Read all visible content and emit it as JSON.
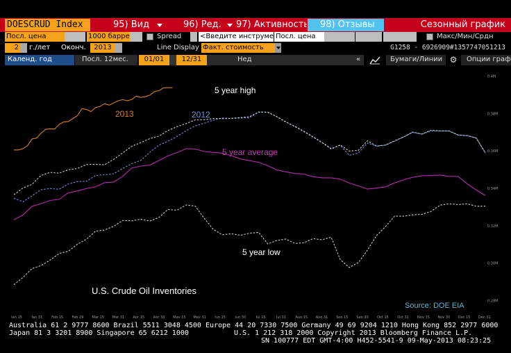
{
  "toolbar": {
    "ticker": "DOESCRUD Index",
    "btn_view": "95) Вид",
    "btn_edit": "96) Ред.",
    "btn_activity": "97) Активность",
    "btn_reviews": "98) Отзывы",
    "title": "Сезонный график"
  },
  "row2": {
    "field1": "Посл. цена",
    "field2": "1000 барре",
    "check1_label": "Spread",
    "input_placeholder": "<Введите инструме",
    "field3": "Посл. цена",
    "check2_label": "Макс/Мин/Срдн"
  },
  "row3": {
    "years": "2",
    "years_unit": "г./лет",
    "end_label": "Оконч.",
    "end_year": "2013",
    "line_display_label": "Line Display",
    "line_display_value": "Факт. стоимость",
    "id_text": "G1258 - 6926909#1357747051213"
  },
  "row4": {
    "tab_calendar": "Календ. год",
    "tab_last12": "Посл. 12мес.",
    "date_from": "01/01",
    "date_to": "12/31",
    "period": "Нед",
    "collapse": "«",
    "bonds_lines": "Бумаги/Линии",
    "chart_options": "Опции граф"
  },
  "chart_data": {
    "type": "line",
    "x_ticks": [
      "Jan 15",
      "Jan 31",
      "Feb 15",
      "Feb 29",
      "Mar 15",
      "Mar 31",
      "Apr 15",
      "Apr 30",
      "May 15",
      "May 31",
      "Jun 15",
      "Jun 30",
      "Jul 15",
      "Jul 31",
      "Aug 15",
      "Aug 31",
      "Sep 15",
      "Sep 30",
      "Oct 15",
      "Oct 31",
      "Nov 15",
      "Nov 30",
      "Dec 15",
      "Dec 31"
    ],
    "y_ticks": [
      "0.28M",
      "0.30M",
      "0.32M",
      "0.34M",
      "0.36M",
      "0.38M",
      "0.4M"
    ],
    "ylim": [
      0.275,
      0.405
    ],
    "annotations": {
      "s2013": "2013",
      "s2012": "2012",
      "high": "5 year high",
      "avg": "5 year average",
      "low": "5 year low",
      "chart_title": "U.S. Crude Oil Inventories",
      "source": "Source: DOE EIA"
    },
    "series": [
      {
        "name": "2013",
        "color": "#d9801f",
        "dash": false,
        "x": [
          0,
          0.5,
          1,
          1.5,
          2,
          2.5,
          3,
          3.5,
          4,
          4.5,
          5,
          5.5,
          6,
          6.5,
          7,
          7.5,
          8,
          8.5,
          9,
          9.5,
          10,
          10.5,
          11,
          11.5,
          12,
          12.5,
          13,
          13.5,
          14,
          14.5,
          15,
          15.5,
          16,
          16.5,
          17,
          17.5
        ],
        "y": [
          0.3605,
          0.3605,
          0.3612,
          0.3628,
          0.3664,
          0.3668,
          0.3695,
          0.3715,
          0.3718,
          0.3717,
          0.3742,
          0.3755,
          0.3757,
          0.3772,
          0.3788,
          0.3825,
          0.3822,
          0.381,
          0.3832,
          0.3838,
          0.3852,
          0.3845,
          0.3856,
          0.3868,
          0.3874,
          0.3868,
          0.3875,
          0.3893,
          0.3886,
          0.389,
          0.3898,
          0.3917,
          0.3922,
          0.3937,
          0.3938,
          0.3938
        ]
      },
      {
        "name": "2012",
        "color": "#6f93d6",
        "dash": true,
        "x": [
          0,
          1,
          2,
          3,
          4,
          5,
          6,
          7,
          8,
          9,
          10,
          11,
          12,
          13,
          14,
          15,
          16,
          17,
          18,
          19,
          20,
          21,
          22,
          23,
          24,
          25,
          26,
          27,
          28,
          29,
          30,
          31,
          32,
          33,
          34,
          35,
          36,
          37,
          38,
          39,
          40,
          41,
          42,
          43,
          44,
          45,
          46,
          47,
          48,
          49,
          50,
          51,
          52
        ],
        "y": [
          0.3347,
          0.3328,
          0.336,
          0.3393,
          0.3399,
          0.3395,
          0.3423,
          0.3436,
          0.3437,
          0.3469,
          0.3472,
          0.3478,
          0.3506,
          0.3532,
          0.3549,
          0.3593,
          0.3631,
          0.3652,
          0.3677,
          0.3708,
          0.3734,
          0.3748,
          0.3764,
          0.3776,
          0.3773,
          0.3776,
          0.3777,
          0.3808,
          0.3808,
          0.3783,
          0.3754,
          0.3732,
          0.3705,
          0.3676,
          0.3645,
          0.3614,
          0.363,
          0.3576,
          0.3589,
          0.3642,
          0.3626,
          0.3631,
          0.3652,
          0.3674,
          0.3699,
          0.3689,
          0.3706,
          0.3706,
          0.3706,
          0.3685,
          0.3681,
          0.3669,
          0.3589
        ]
      },
      {
        "name": "5 year high",
        "color": "#cfcfcf",
        "dash": true,
        "x": [
          0,
          1,
          2,
          3,
          4,
          5,
          6,
          7,
          8,
          9,
          10,
          11,
          12,
          13,
          14,
          15,
          16,
          17,
          18,
          19,
          20,
          21,
          22,
          23,
          24,
          25,
          26,
          27,
          28,
          29,
          30,
          31,
          32,
          33,
          34,
          35,
          36,
          37,
          38,
          39,
          40,
          41,
          42,
          43,
          44,
          45,
          46,
          47,
          48,
          49,
          50,
          51,
          52
        ],
        "y": [
          0.3366,
          0.3402,
          0.3421,
          0.3469,
          0.3485,
          0.3481,
          0.3499,
          0.3506,
          0.3527,
          0.3528,
          0.3526,
          0.3554,
          0.3589,
          0.3625,
          0.3644,
          0.3666,
          0.3679,
          0.3709,
          0.373,
          0.3746,
          0.3766,
          0.3767,
          0.3773,
          0.3772,
          0.3774,
          0.3778,
          0.3783,
          0.3808,
          0.3806,
          0.3783,
          0.3755,
          0.373,
          0.3703,
          0.3674,
          0.3644,
          0.361,
          0.3632,
          0.3599,
          0.3603,
          0.3654,
          0.3626,
          0.3631,
          0.3654,
          0.3675,
          0.3701,
          0.369,
          0.371,
          0.3707,
          0.3707,
          0.3685,
          0.3682,
          0.3669,
          0.359
        ]
      },
      {
        "name": "5 year average",
        "color": "#b52bb0",
        "dash": false,
        "x": [
          0,
          1,
          2,
          3,
          4,
          5,
          6,
          7,
          8,
          9,
          10,
          11,
          12,
          13,
          14,
          15,
          16,
          17,
          18,
          19,
          20,
          21,
          22,
          23,
          24,
          25,
          26,
          27,
          28,
          29,
          30,
          31,
          32,
          33,
          34,
          35,
          36,
          37,
          38,
          39,
          40,
          41,
          42,
          43,
          44,
          45,
          46,
          47,
          48,
          49,
          50,
          51,
          52
        ],
        "y": [
          0.3232,
          0.3257,
          0.3304,
          0.3318,
          0.3335,
          0.3341,
          0.3376,
          0.3386,
          0.3399,
          0.3408,
          0.343,
          0.3433,
          0.3464,
          0.3509,
          0.3519,
          0.3524,
          0.3549,
          0.3574,
          0.3591,
          0.3612,
          0.361,
          0.3597,
          0.3592,
          0.3588,
          0.3575,
          0.3557,
          0.3548,
          0.3539,
          0.3521,
          0.3498,
          0.3488,
          0.3479,
          0.3476,
          0.3462,
          0.3456,
          0.3456,
          0.3449,
          0.3428,
          0.3413,
          0.3396,
          0.3401,
          0.3408,
          0.3429,
          0.3446,
          0.3459,
          0.3467,
          0.3469,
          0.3471,
          0.3464,
          0.3463,
          0.3424,
          0.3391,
          0.3361
        ]
      },
      {
        "name": "5 year low",
        "color": "#cfcfcf",
        "dash": true,
        "x": [
          0,
          1,
          2,
          3,
          4,
          5,
          6,
          7,
          8,
          9,
          10,
          11,
          12,
          13,
          14,
          15,
          16,
          17,
          18,
          19,
          20,
          21,
          22,
          23,
          24,
          25,
          26,
          27,
          28,
          29,
          30,
          31,
          32,
          33,
          34,
          35,
          36,
          37,
          38,
          39,
          40,
          41,
          42,
          43,
          44,
          45,
          46,
          47,
          48,
          49,
          50,
          51,
          52
        ],
        "y": [
          0.2885,
          0.2924,
          0.2971,
          0.2987,
          0.3016,
          0.3052,
          0.3063,
          0.3101,
          0.3128,
          0.3171,
          0.3177,
          0.3197,
          0.3228,
          0.3226,
          0.3235,
          0.3225,
          0.3244,
          0.3287,
          0.3283,
          0.3311,
          0.3305,
          0.324,
          0.318,
          0.3152,
          0.3157,
          0.3149,
          0.316,
          0.3164,
          0.3103,
          0.3121,
          0.3129,
          0.3105,
          0.3109,
          0.3131,
          0.3125,
          0.3139,
          0.3019,
          0.2977,
          0.3003,
          0.307,
          0.3147,
          0.3196,
          0.3251,
          0.3251,
          0.3258,
          0.3261,
          0.3276,
          0.331,
          0.3317,
          0.3313,
          0.3317,
          0.3304,
          0.3305
        ]
      }
    ]
  },
  "footer": {
    "line1": "Australia 61 2 9777 8600 Brazil 5511 3048 4500 Europe 44 20 7330 7500 Germany 49 69 9204 1210 Hong Kong 852 2977 6000",
    "line2a": "Japan 81 3 3201 8900        Singapore 65 6212 1000",
    "line2b": "U.S. 1 212 318 2000         Copyright 2013 Bloomberg Finance L.P.",
    "line3": "SN 100777 EDT  GMT-4:00 H452-5541-9 09-May-2013 08:23:25"
  }
}
